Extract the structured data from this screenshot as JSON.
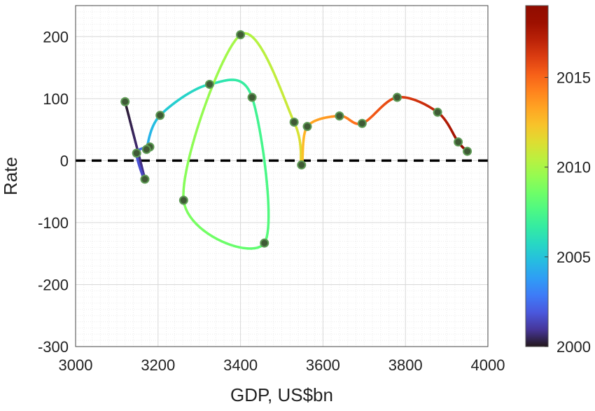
{
  "chart_data": {
    "type": "line",
    "xlabel": "GDP, US$bn",
    "ylabel": "Rate",
    "xlim": [
      3000,
      4000
    ],
    "ylim": [
      -300,
      250
    ],
    "x_ticks": [
      3000,
      3200,
      3400,
      3600,
      3800,
      4000
    ],
    "y_ticks": [
      -300,
      -200,
      -100,
      0,
      100,
      200
    ],
    "x_tick_labels": [
      "3000",
      "3200",
      "3400",
      "3600",
      "3800",
      "4000"
    ],
    "y_tick_labels": [
      "-300",
      "-200",
      "-100",
      "0",
      "100",
      "200"
    ],
    "grid": true,
    "minor_grid": true,
    "reference_line": {
      "y": 0,
      "style": "dashed",
      "color": "#000000"
    },
    "colorbar": {
      "colormap": "turbo",
      "range": [
        2000,
        2019
      ],
      "ticks": [
        2000,
        2005,
        2010,
        2015
      ],
      "tick_labels": [
        "2000",
        "2005",
        "2010",
        "2015"
      ]
    },
    "series": [
      {
        "points": [
          {
            "year": 2000,
            "x": 3120,
            "y": 95
          },
          {
            "year": 2001,
            "x": 3168,
            "y": -30
          },
          {
            "year": 2002,
            "x": 3148,
            "y": 12
          },
          {
            "year": 2003,
            "x": 3180,
            "y": 22
          },
          {
            "year": 2004,
            "x": 3172,
            "y": 18
          },
          {
            "year": 2005,
            "x": 3205,
            "y": 73
          },
          {
            "year": 2006,
            "x": 3325,
            "y": 123
          },
          {
            "year": 2007,
            "x": 3428,
            "y": 102
          },
          {
            "year": 2008,
            "x": 3458,
            "y": -133
          },
          {
            "year": 2009,
            "x": 3262,
            "y": -64
          },
          {
            "year": 2010,
            "x": 3400,
            "y": 203
          },
          {
            "year": 2011,
            "x": 3530,
            "y": 62
          },
          {
            "year": 2012,
            "x": 3548,
            "y": -7
          },
          {
            "year": 2013,
            "x": 3562,
            "y": 55
          },
          {
            "year": 2014,
            "x": 3640,
            "y": 72
          },
          {
            "year": 2015,
            "x": 3695,
            "y": 60
          },
          {
            "year": 2016,
            "x": 3780,
            "y": 102
          },
          {
            "year": 2017,
            "x": 3878,
            "y": 78
          },
          {
            "year": 2018,
            "x": 3928,
            "y": 30
          },
          {
            "year": 2019,
            "x": 3950,
            "y": 15
          }
        ]
      }
    ]
  },
  "colors": {
    "marker_fill": "#3f5a35",
    "marker_stroke": "#5e9a55",
    "grid_major": "#d9d9d9",
    "grid_minor": "#ececec",
    "axis": "#444444",
    "zero_line": "#000000"
  }
}
